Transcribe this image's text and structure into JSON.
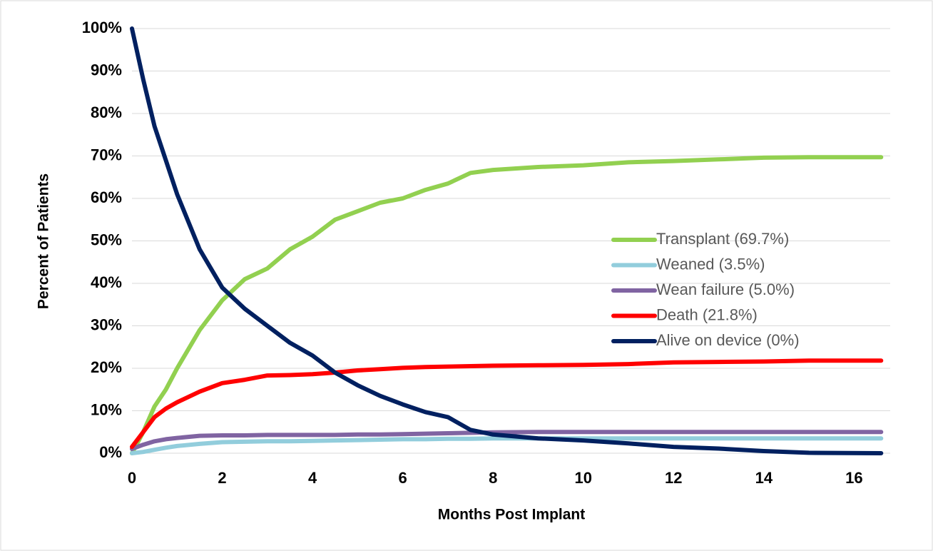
{
  "chart_data": {
    "type": "line",
    "x_label": "Months Post Implant",
    "y_label": "Percent of Patients",
    "x": [
      0,
      0.25,
      0.5,
      0.75,
      1,
      1.5,
      2,
      2.5,
      3,
      3.5,
      4,
      4.5,
      5,
      5.5,
      6,
      6.5,
      7,
      7.5,
      8,
      9,
      10,
      11,
      12,
      13,
      14,
      15,
      16.6
    ],
    "series": [
      {
        "name": "Transplant (69.7%)",
        "color": "#92d050",
        "values": [
          0,
          5,
          11,
          15,
          20,
          29,
          36,
          41,
          43.5,
          48,
          51,
          55,
          57,
          59,
          60,
          62,
          63.5,
          66,
          66.7,
          67.4,
          67.8,
          68.5,
          68.8,
          69.2,
          69.6,
          69.7,
          69.7
        ]
      },
      {
        "name": "Weaned (3.5%)",
        "color": "#92cddc",
        "values": [
          0,
          0.3,
          0.8,
          1.3,
          1.7,
          2.2,
          2.6,
          2.7,
          2.8,
          2.8,
          2.9,
          3.0,
          3.1,
          3.2,
          3.3,
          3.3,
          3.4,
          3.4,
          3.5,
          3.5,
          3.5,
          3.5,
          3.5,
          3.5,
          3.5,
          3.5,
          3.5
        ]
      },
      {
        "name": "Wean failure (5.0%)",
        "color": "#8064a2",
        "values": [
          1,
          2,
          2.8,
          3.3,
          3.6,
          4.1,
          4.2,
          4.2,
          4.3,
          4.3,
          4.3,
          4.3,
          4.4,
          4.4,
          4.5,
          4.6,
          4.7,
          4.8,
          4.9,
          5.0,
          5.0,
          5.0,
          5.0,
          5.0,
          5.0,
          5.0,
          5.0
        ]
      },
      {
        "name": "Death (21.8%)",
        "color": "#ff0000",
        "values": [
          1.5,
          5,
          8.5,
          10.5,
          12,
          14.5,
          16.5,
          17.3,
          18.3,
          18.4,
          18.6,
          19,
          19.5,
          19.8,
          20.1,
          20.3,
          20.4,
          20.5,
          20.6,
          20.7,
          20.8,
          21,
          21.4,
          21.5,
          21.6,
          21.8,
          21.8
        ]
      },
      {
        "name": "Alive on device (0%)",
        "color": "#002060",
        "values": [
          100,
          88,
          77,
          69,
          61,
          48,
          39,
          34,
          30,
          26,
          23,
          19,
          16,
          13.5,
          11.5,
          9.7,
          8.5,
          5.5,
          4.4,
          3.5,
          3.0,
          2.3,
          1.5,
          1.1,
          0.5,
          0.1,
          0
        ]
      }
    ],
    "xlim": [
      0,
      16.8
    ],
    "xticks": [
      0,
      2,
      4,
      6,
      8,
      10,
      12,
      14,
      16
    ],
    "ylim": [
      0,
      100
    ],
    "yticks": [
      {
        "value": 0,
        "label": "0%"
      },
      {
        "value": 10,
        "label": "10%"
      },
      {
        "value": 20,
        "label": "20%"
      },
      {
        "value": 30,
        "label": "30%"
      },
      {
        "value": 40,
        "label": "40%"
      },
      {
        "value": 50,
        "label": "50%"
      },
      {
        "value": 60,
        "label": "60%"
      },
      {
        "value": 70,
        "label": "70%"
      },
      {
        "value": 80,
        "label": "80%"
      },
      {
        "value": 90,
        "label": "90%"
      },
      {
        "value": 100,
        "label": "100%"
      }
    ],
    "grid": true,
    "legend_position": "right"
  }
}
